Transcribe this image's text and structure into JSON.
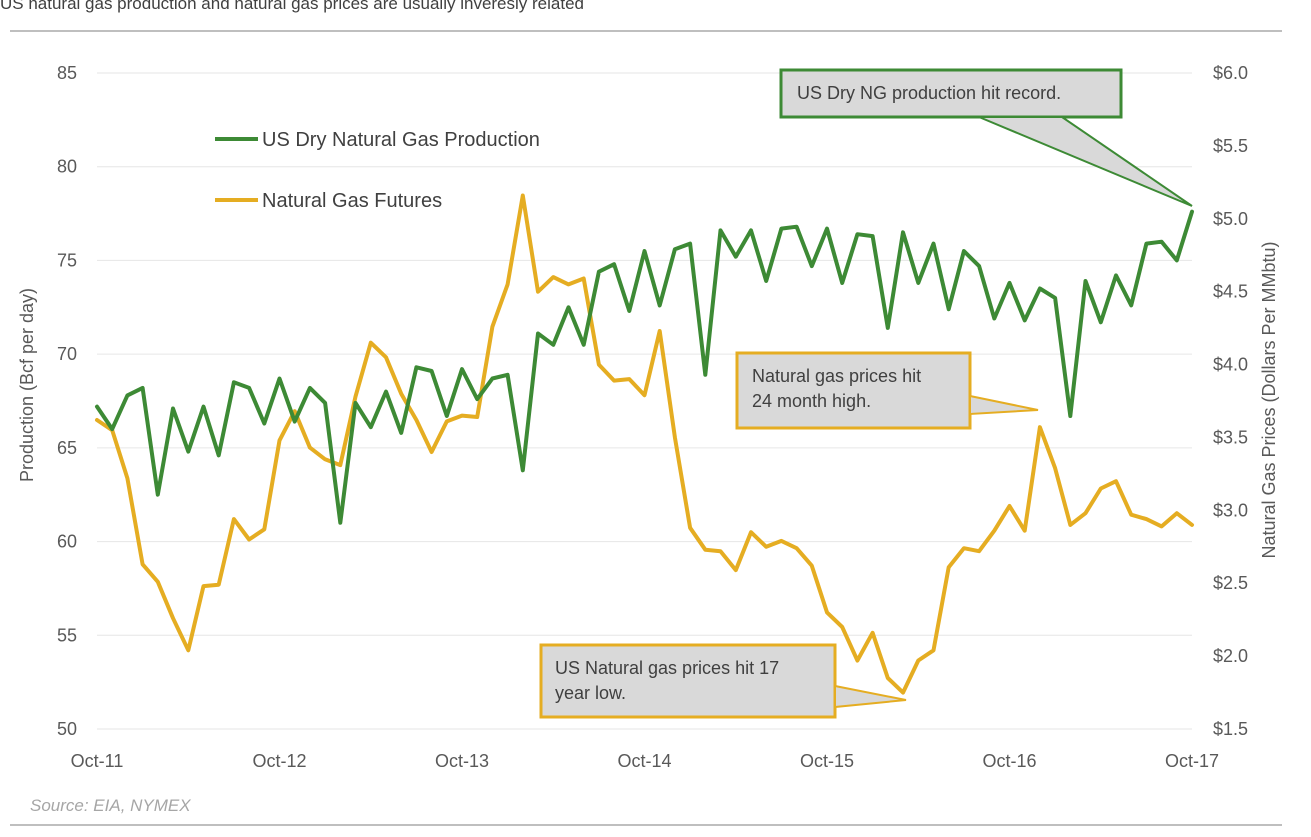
{
  "title": "US natural gas production and  natural gas prices are usually inveresly related",
  "source": "Source: EIA, NYMEX",
  "colors": {
    "production": "#3d8a35",
    "futures": "#e5ad22",
    "callout_fill": "#d9d9d9",
    "grid": "#e6e6e6"
  },
  "chart_data": {
    "type": "line",
    "x_labels": [
      "Oct-11",
      "Oct-12",
      "Oct-13",
      "Oct-14",
      "Oct-15",
      "Oct-16",
      "Oct-17"
    ],
    "y_left": {
      "label": "Production (Bcf per day)",
      "min": 50,
      "max": 85,
      "ticks": [
        "50",
        "55",
        "60",
        "65",
        "70",
        "75",
        "80",
        "85"
      ]
    },
    "y_right": {
      "label": "Natural Gas Prices (Dollars Per MMbtu)",
      "min": 1.5,
      "max": 6.0,
      "ticks": [
        "$1.5",
        "$2.0",
        "$2.5",
        "$3.0",
        "$3.5",
        "$4.0",
        "$4.5",
        "$5.0",
        "$5.5",
        "$6.0"
      ]
    },
    "series": [
      {
        "name": "US Dry Natural Gas Production",
        "axis": "left",
        "values": [
          67.2,
          66.0,
          67.8,
          68.2,
          62.5,
          67.1,
          64.8,
          67.2,
          64.6,
          68.5,
          68.2,
          66.3,
          68.7,
          66.4,
          68.2,
          67.4,
          61.0,
          67.4,
          66.1,
          68.0,
          65.8,
          69.3,
          69.1,
          66.7,
          69.2,
          67.6,
          68.7,
          68.9,
          63.8,
          71.1,
          70.5,
          72.5,
          70.5,
          74.4,
          74.8,
          72.3,
          75.5,
          72.6,
          75.6,
          75.9,
          68.9,
          76.6,
          75.2,
          76.6,
          73.9,
          76.7,
          76.8,
          74.7,
          76.7,
          73.8,
          76.4,
          76.3,
          71.4,
          76.5,
          73.8,
          75.9,
          72.4,
          75.5,
          74.7,
          71.9,
          73.8,
          71.8,
          73.5,
          73.0,
          66.7,
          73.9,
          71.7,
          74.2,
          72.6,
          75.9,
          76.0,
          75.0,
          77.6
        ]
      },
      {
        "name": "Natural Gas Futures",
        "axis": "right",
        "values": [
          3.62,
          3.55,
          3.22,
          2.63,
          2.51,
          2.26,
          2.04,
          2.48,
          2.49,
          2.94,
          2.8,
          2.87,
          3.48,
          3.68,
          3.43,
          3.35,
          3.31,
          3.78,
          4.15,
          4.05,
          3.8,
          3.62,
          3.4,
          3.61,
          3.65,
          3.64,
          4.26,
          4.55,
          5.16,
          4.5,
          4.6,
          4.55,
          4.59,
          4.0,
          3.89,
          3.9,
          3.79,
          4.23,
          3.5,
          2.88,
          2.73,
          2.72,
          2.59,
          2.85,
          2.75,
          2.79,
          2.74,
          2.62,
          2.3,
          2.2,
          1.97,
          2.16,
          1.85,
          1.75,
          1.97,
          2.04,
          2.61,
          2.74,
          2.72,
          2.86,
          3.03,
          2.86,
          3.57,
          3.29,
          2.9,
          2.98,
          3.15,
          3.2,
          2.97,
          2.94,
          2.89,
          2.98,
          2.9
        ]
      }
    ],
    "legend": [
      "US Dry Natural Gas Production",
      "Natural Gas Futures"
    ],
    "grid": "horizontal",
    "annotations": [
      {
        "text": [
          "US Dry NG production hit record."
        ],
        "border": "#3d8a35"
      },
      {
        "text": [
          "Natural gas prices hit",
          "24 month high."
        ],
        "border": "#e5ad22"
      },
      {
        "text": [
          "US Natural gas prices hit 17",
          "year low."
        ],
        "border": "#e5ad22"
      }
    ]
  }
}
